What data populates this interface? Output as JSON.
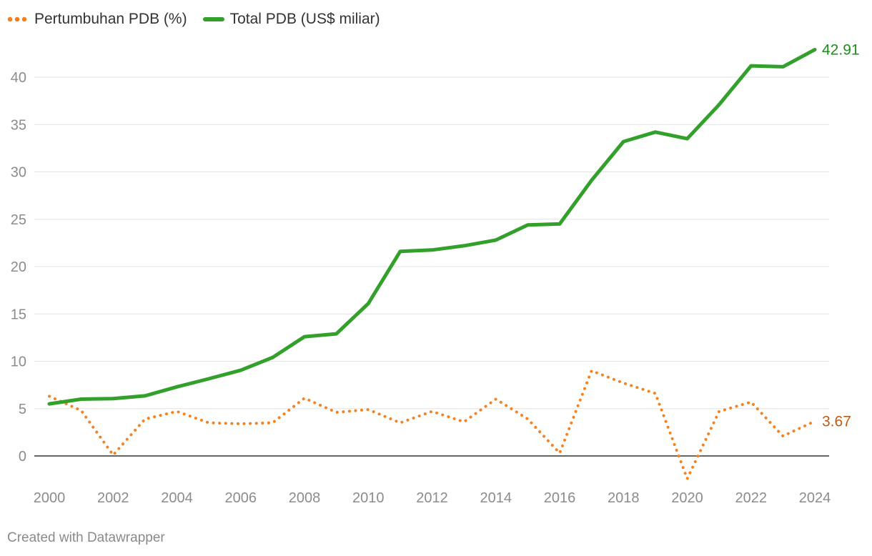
{
  "legend": {
    "growth_label": "Pertumbuhan PDB (%)",
    "total_label": "Total PDB (US$ miliar)"
  },
  "credit": "Created with Datawrapper",
  "colors": {
    "growth": "#f58220",
    "growth_label": "#c45a10",
    "total": "#33a02c",
    "total_label": "#1f8f1f",
    "grid": "#e3e3e3",
    "baseline": "#333333",
    "tick": "#8c8c8c"
  },
  "chart_data": {
    "type": "line",
    "x": [
      2000,
      2001,
      2002,
      2003,
      2004,
      2005,
      2006,
      2007,
      2008,
      2009,
      2010,
      2011,
      2012,
      2013,
      2014,
      2015,
      2016,
      2017,
      2018,
      2019,
      2020,
      2021,
      2022,
      2023,
      2024
    ],
    "x_ticks": [
      "2000",
      "2002",
      "2004",
      "2006",
      "2008",
      "2010",
      "2012",
      "2014",
      "2016",
      "2018",
      "2020",
      "2022",
      "2024"
    ],
    "y_ticks": [
      "0",
      "5",
      "10",
      "15",
      "20",
      "25",
      "30",
      "35",
      "40"
    ],
    "ylim": [
      -2.5,
      43
    ],
    "grid": true,
    "legend_position": "top-left",
    "series": [
      {
        "name": "Pertumbuhan PDB (%)",
        "key": "growth",
        "style": "dotted",
        "values": [
          6.3,
          4.8,
          0.1,
          3.9,
          4.7,
          3.5,
          3.4,
          3.5,
          6.1,
          4.6,
          4.9,
          3.5,
          4.7,
          3.6,
          6.0,
          3.9,
          0.3,
          9.0,
          7.7,
          6.6,
          -2.4,
          4.7,
          5.7,
          2.1,
          3.67
        ],
        "end_label": "3.67"
      },
      {
        "name": "Total PDB (US$ miliar)",
        "key": "total",
        "style": "solid",
        "values": [
          5.5,
          6.0,
          6.05,
          6.35,
          7.3,
          8.15,
          9.05,
          10.4,
          12.6,
          12.9,
          16.1,
          21.6,
          21.75,
          22.2,
          22.8,
          24.4,
          24.5,
          29.1,
          33.2,
          34.2,
          33.5,
          37.1,
          41.2,
          41.1,
          42.91
        ],
        "end_label": "42.91"
      }
    ]
  }
}
